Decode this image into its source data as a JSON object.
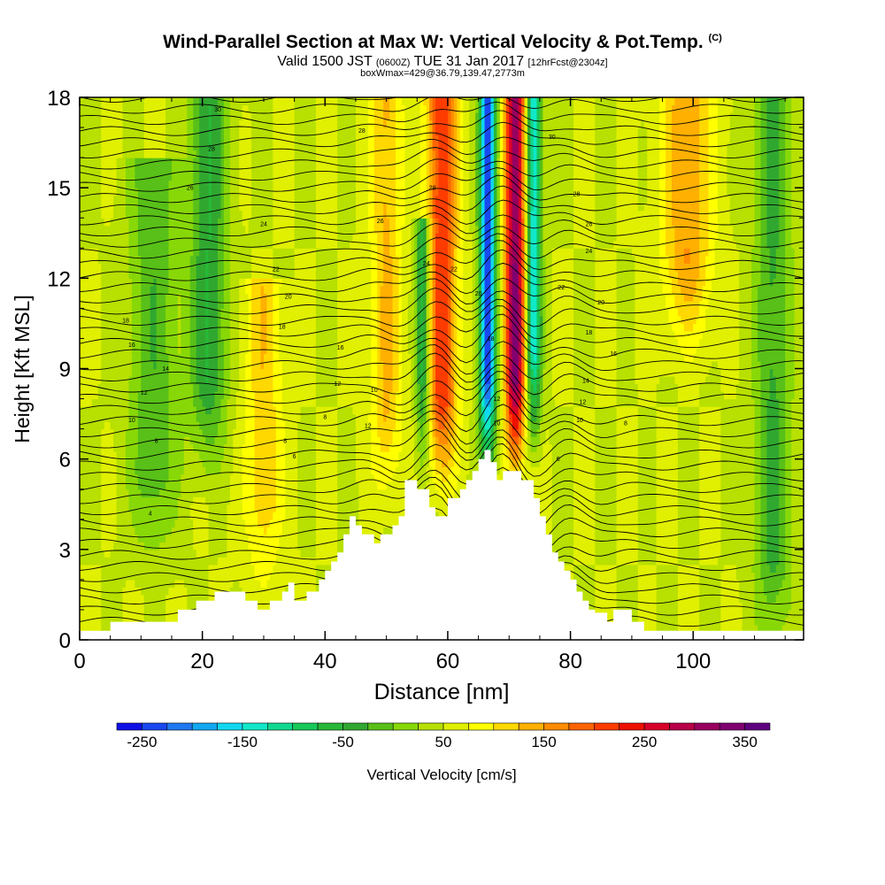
{
  "header": {
    "title": "Wind-Parallel Section at Max W: Vertical Velocity & Pot.Temp.",
    "title_mark": "(C)",
    "valid_main": "Valid 1500 JST",
    "valid_utc": "(0600Z)",
    "valid_date": "TUE 31 Jan 2017",
    "fcst": "[12hrFcst@2304z]",
    "box": "boxWmax=429@36.79,139.47,2773m"
  },
  "chart_data": {
    "type": "heatmap",
    "xlabel": "Distance [nm]",
    "ylabel": "Height [Kft MSL]",
    "xlim": [
      0,
      118
    ],
    "ylim": [
      0,
      18
    ],
    "x_ticks": [
      "0",
      "20",
      "40",
      "60",
      "80",
      "100"
    ],
    "x_tick_values": [
      0,
      20,
      40,
      60,
      80,
      100
    ],
    "y_ticks": [
      "0",
      "3",
      "6",
      "9",
      "12",
      "15",
      "18"
    ],
    "y_tick_values": [
      0,
      3,
      6,
      9,
      12,
      15,
      18
    ],
    "colorbar": {
      "label": "Vertical Velocity [cm/s]",
      "range": [
        -275,
        375
      ],
      "tick_labels": [
        "-250",
        "-150",
        "-50",
        "50",
        "150",
        "250",
        "350"
      ],
      "tick_values": [
        -250,
        -150,
        -50,
        50,
        150,
        250,
        350
      ],
      "colors": [
        "#1010e8",
        "#1848f0",
        "#2078f0",
        "#10a8f0",
        "#10d8f0",
        "#10e8c8",
        "#10d890",
        "#18c858",
        "#28b838",
        "#30a830",
        "#58c018",
        "#88d808",
        "#b8e000",
        "#e0f000",
        "#ffff00",
        "#ffd800",
        "#ffb000",
        "#ff8c00",
        "#ff6400",
        "#ff3c00",
        "#f01000",
        "#d8002a",
        "#b80048",
        "#980060",
        "#800070",
        "#600080"
      ]
    },
    "background_level": 50,
    "updraft_columns": [
      {
        "x": 50,
        "width": 2.5,
        "peak": 100,
        "top": 18,
        "bottom": 5
      },
      {
        "x": 59,
        "width": 2.5,
        "peak": 190,
        "top": 18,
        "bottom": 5.5
      },
      {
        "x": 71,
        "width": 1.6,
        "peak": 300,
        "top": 18,
        "bottom": 6
      },
      {
        "x": 99,
        "width": 4,
        "peak": 120,
        "top": 18,
        "bottom": 10
      },
      {
        "x": 30,
        "width": 3,
        "peak": 90,
        "top": 12,
        "bottom": 2
      }
    ],
    "downdraft_columns": [
      {
        "x": 66.5,
        "width": 1.3,
        "peak": -270,
        "top": 18,
        "bottom": 6
      },
      {
        "x": 74,
        "width": 1.2,
        "peak": -180,
        "top": 18,
        "bottom": 7
      },
      {
        "x": 56,
        "width": 1.2,
        "peak": -120,
        "top": 14,
        "bottom": 6
      },
      {
        "x": 21,
        "width": 3,
        "peak": -80,
        "top": 18,
        "bottom": 6
      },
      {
        "x": 12,
        "width": 4,
        "peak": -50,
        "top": 16,
        "bottom": 3
      },
      {
        "x": 113,
        "width": 3,
        "peak": -60,
        "top": 18,
        "bottom": 0
      }
    ],
    "terrain": {
      "x": [
        0,
        5,
        5,
        16,
        16,
        19,
        19,
        22,
        22,
        27,
        27,
        29,
        29,
        31,
        31,
        33,
        33,
        34,
        34,
        35,
        35,
        37,
        37,
        39,
        39,
        40,
        40,
        41,
        41,
        42,
        42,
        43,
        43,
        44,
        44,
        45,
        45,
        46,
        46,
        48,
        48,
        49,
        49,
        51,
        51,
        52,
        52,
        53,
        53,
        55,
        55,
        57,
        57,
        58,
        58,
        60,
        60,
        62,
        62,
        63,
        63,
        64,
        64,
        65,
        65,
        66,
        66,
        67,
        67,
        68,
        68,
        69,
        69,
        70,
        70,
        72,
        72,
        74,
        74,
        75,
        75,
        76,
        76,
        77,
        77,
        78,
        78,
        79,
        79,
        80,
        80,
        81,
        81,
        82,
        82,
        83,
        83,
        84,
        84,
        86,
        86,
        87,
        87,
        90,
        90,
        92,
        92,
        95,
        95,
        118
      ],
      "y": [
        0.3,
        0.3,
        0.6,
        0.6,
        1.0,
        1.0,
        1.3,
        1.3,
        1.6,
        1.6,
        1.3,
        1.3,
        1.0,
        1.0,
        1.3,
        1.3,
        1.6,
        1.6,
        1.9,
        1.9,
        1.3,
        1.3,
        1.6,
        1.6,
        2.0,
        2.0,
        2.3,
        2.3,
        2.6,
        2.6,
        2.9,
        2.9,
        3.5,
        3.5,
        4.1,
        4.1,
        3.8,
        3.8,
        3.5,
        3.5,
        3.2,
        3.2,
        3.5,
        3.5,
        3.8,
        3.8,
        4.1,
        4.1,
        5.3,
        5.3,
        5.0,
        5.0,
        4.4,
        4.4,
        4.1,
        4.1,
        4.7,
        4.7,
        5.0,
        5.0,
        5.3,
        5.3,
        5.6,
        5.6,
        6.0,
        6.0,
        6.3,
        6.3,
        5.9,
        5.9,
        5.3,
        5.3,
        5.6,
        5.6,
        5.6,
        5.6,
        5.3,
        5.3,
        4.7,
        4.7,
        4.1,
        4.1,
        3.5,
        3.5,
        2.9,
        2.9,
        2.6,
        2.6,
        2.3,
        2.3,
        2.0,
        2.0,
        1.6,
        1.6,
        1.3,
        1.3,
        1.0,
        1.0,
        0.9,
        0.9,
        0.6,
        0.6,
        1.0,
        1.0,
        0.6,
        0.6,
        0.3,
        0.3,
        0.3,
        0.3
      ]
    },
    "theta_labels": [
      {
        "x": 22.5,
        "y": 17.6,
        "text": "30"
      },
      {
        "x": 46,
        "y": 16.9,
        "text": "28"
      },
      {
        "x": 21.5,
        "y": 16.3,
        "text": "28"
      },
      {
        "x": 18,
        "y": 15.0,
        "text": "26"
      },
      {
        "x": 30,
        "y": 13.8,
        "text": "24"
      },
      {
        "x": 32,
        "y": 12.3,
        "text": "22"
      },
      {
        "x": 34,
        "y": 11.4,
        "text": "20"
      },
      {
        "x": 33,
        "y": 10.4,
        "text": "18"
      },
      {
        "x": 7.5,
        "y": 10.6,
        "text": "18"
      },
      {
        "x": 8.5,
        "y": 9.8,
        "text": "16"
      },
      {
        "x": 14,
        "y": 9.0,
        "text": "14"
      },
      {
        "x": 10.5,
        "y": 8.2,
        "text": "12"
      },
      {
        "x": 8.5,
        "y": 7.3,
        "text": "10"
      },
      {
        "x": 12.5,
        "y": 6.6,
        "text": "8"
      },
      {
        "x": 33.5,
        "y": 6.6,
        "text": "8"
      },
      {
        "x": 35,
        "y": 6.1,
        "text": "6"
      },
      {
        "x": 42.5,
        "y": 9.7,
        "text": "16"
      },
      {
        "x": 42,
        "y": 8.5,
        "text": "12"
      },
      {
        "x": 40,
        "y": 7.4,
        "text": "8"
      },
      {
        "x": 48,
        "y": 8.3,
        "text": "10"
      },
      {
        "x": 47,
        "y": 7.1,
        "text": "12"
      },
      {
        "x": 49,
        "y": 13.9,
        "text": "26"
      },
      {
        "x": 57.5,
        "y": 15.0,
        "text": "28"
      },
      {
        "x": 56.5,
        "y": 12.5,
        "text": "24"
      },
      {
        "x": 61,
        "y": 12.3,
        "text": "22"
      },
      {
        "x": 65,
        "y": 11.5,
        "text": "20"
      },
      {
        "x": 67,
        "y": 10.0,
        "text": "18"
      },
      {
        "x": 68,
        "y": 8.0,
        "text": "12"
      },
      {
        "x": 68,
        "y": 7.2,
        "text": "10"
      },
      {
        "x": 77,
        "y": 16.7,
        "text": "30"
      },
      {
        "x": 81,
        "y": 14.8,
        "text": "28"
      },
      {
        "x": 83,
        "y": 13.8,
        "text": "26"
      },
      {
        "x": 83,
        "y": 12.9,
        "text": "24"
      },
      {
        "x": 78.5,
        "y": 11.7,
        "text": "22"
      },
      {
        "x": 85,
        "y": 11.2,
        "text": "20"
      },
      {
        "x": 83,
        "y": 10.2,
        "text": "18"
      },
      {
        "x": 87,
        "y": 9.5,
        "text": "16"
      },
      {
        "x": 82.5,
        "y": 8.6,
        "text": "14"
      },
      {
        "x": 82,
        "y": 7.9,
        "text": "12"
      },
      {
        "x": 81.5,
        "y": 7.3,
        "text": "10"
      },
      {
        "x": 89,
        "y": 7.2,
        "text": "8"
      },
      {
        "x": 78,
        "y": 6.0,
        "text": "6"
      },
      {
        "x": 11.5,
        "y": 4.2,
        "text": "4"
      }
    ]
  }
}
